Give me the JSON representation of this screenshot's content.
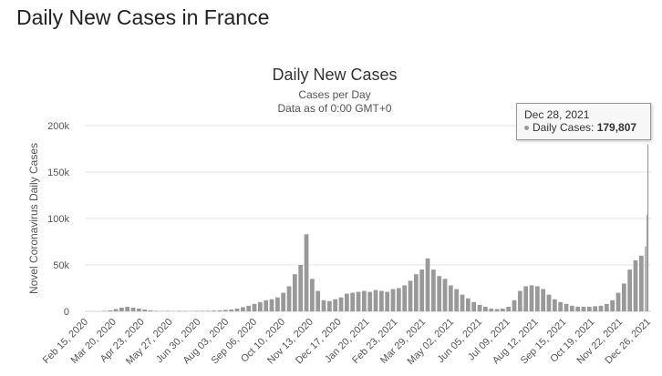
{
  "page_title": "Daily New Cases in France",
  "chart_data": {
    "type": "bar",
    "title": "Daily New Cases",
    "subtitle_lines": [
      "Cases per Day",
      "Data as of 0:00 GMT+0"
    ],
    "ylabel": "Novel Coronavirus Daily Cases",
    "xlabel": "",
    "ylim": [
      0,
      200000
    ],
    "y_ticks": [
      "0",
      "50k",
      "100k",
      "150k",
      "200k"
    ],
    "y_tick_values": [
      0,
      50000,
      100000,
      150000,
      200000
    ],
    "x_range": [
      "2020-02-15",
      "2021-12-28"
    ],
    "x_ticks": [
      "Feb 15, 2020",
      "Mar 20, 2020",
      "Apr 23, 2020",
      "May 27, 2020",
      "Jun 30, 2020",
      "Aug 03, 2020",
      "Sep 06, 2020",
      "Oct 10, 2020",
      "Nov 13, 2020",
      "Dec 17, 2020",
      "Jan 20, 2021",
      "Feb 23, 2021",
      "Mar 29, 2021",
      "May 02, 2021",
      "Jun 05, 2021",
      "Jul 09, 2021",
      "Aug 12, 2021",
      "Sep 15, 2021",
      "Oct 19, 2021",
      "Nov 22, 2021",
      "Dec 26, 2021"
    ],
    "grid": true,
    "bar_color": "#999999",
    "series": [
      {
        "x": [
          "2020-02-15",
          "2020-02-22",
          "2020-02-29",
          "2020-03-07",
          "2020-03-14",
          "2020-03-21",
          "2020-03-28",
          "2020-04-04",
          "2020-04-11",
          "2020-04-18",
          "2020-04-25",
          "2020-05-02",
          "2020-05-09",
          "2020-05-16",
          "2020-05-23",
          "2020-05-30",
          "2020-06-06",
          "2020-06-13",
          "2020-06-20",
          "2020-06-27",
          "2020-07-04",
          "2020-07-11",
          "2020-07-18",
          "2020-07-25",
          "2020-08-01",
          "2020-08-08",
          "2020-08-15",
          "2020-08-22",
          "2020-08-29",
          "2020-09-05",
          "2020-09-12",
          "2020-09-19",
          "2020-09-26",
          "2020-10-03",
          "2020-10-10",
          "2020-10-17",
          "2020-10-24",
          "2020-10-31",
          "2020-11-07",
          "2020-11-14",
          "2020-11-21",
          "2020-11-28",
          "2020-12-05",
          "2020-12-12",
          "2020-12-19",
          "2020-12-26",
          "2021-01-02",
          "2021-01-09",
          "2021-01-16",
          "2021-01-23",
          "2021-01-30",
          "2021-02-06",
          "2021-02-13",
          "2021-02-20",
          "2021-02-27",
          "2021-03-06",
          "2021-03-13",
          "2021-03-20",
          "2021-03-27",
          "2021-04-03",
          "2021-04-10",
          "2021-04-17",
          "2021-04-24",
          "2021-05-01",
          "2021-05-08",
          "2021-05-15",
          "2021-05-22",
          "2021-05-29",
          "2021-06-05",
          "2021-06-12",
          "2021-06-19",
          "2021-06-26",
          "2021-07-03",
          "2021-07-10",
          "2021-07-17",
          "2021-07-24",
          "2021-07-31",
          "2021-08-07",
          "2021-08-14",
          "2021-08-21",
          "2021-08-28",
          "2021-09-04",
          "2021-09-11",
          "2021-09-18",
          "2021-09-25",
          "2021-10-02",
          "2021-10-09",
          "2021-10-16",
          "2021-10-23",
          "2021-10-30",
          "2021-11-06",
          "2021-11-13",
          "2021-11-20",
          "2021-11-27",
          "2021-12-04",
          "2021-12-11",
          "2021-12-18",
          "2021-12-25",
          "2021-12-27",
          "2021-12-28"
        ],
        "values": [
          0,
          0,
          100,
          500,
          1000,
          2500,
          4000,
          5000,
          4000,
          3000,
          2000,
          1000,
          500,
          300,
          500,
          300,
          500,
          400,
          300,
          500,
          500,
          600,
          800,
          1000,
          1500,
          2000,
          3000,
          4500,
          6000,
          8000,
          10000,
          12000,
          13000,
          15000,
          20000,
          27000,
          40000,
          50000,
          83000,
          35000,
          22000,
          12000,
          11000,
          13000,
          15000,
          19000,
          20000,
          21000,
          22000,
          21000,
          23000,
          22000,
          21000,
          24000,
          25000,
          28000,
          33000,
          40000,
          45000,
          57000,
          45000,
          38000,
          35000,
          28000,
          24000,
          18000,
          14000,
          10000,
          7000,
          5000,
          3000,
          2500,
          3000,
          5000,
          12000,
          22000,
          27000,
          28000,
          27000,
          24000,
          18000,
          13000,
          10000,
          8000,
          6000,
          5000,
          5000,
          5000,
          5500,
          6000,
          8000,
          12000,
          20000,
          30000,
          45000,
          55000,
          60000,
          70000,
          104000,
          179807
        ]
      }
    ],
    "tooltip": {
      "date": "Dec 28, 2021",
      "label": "Daily Cases: ",
      "value": "179,807"
    }
  }
}
